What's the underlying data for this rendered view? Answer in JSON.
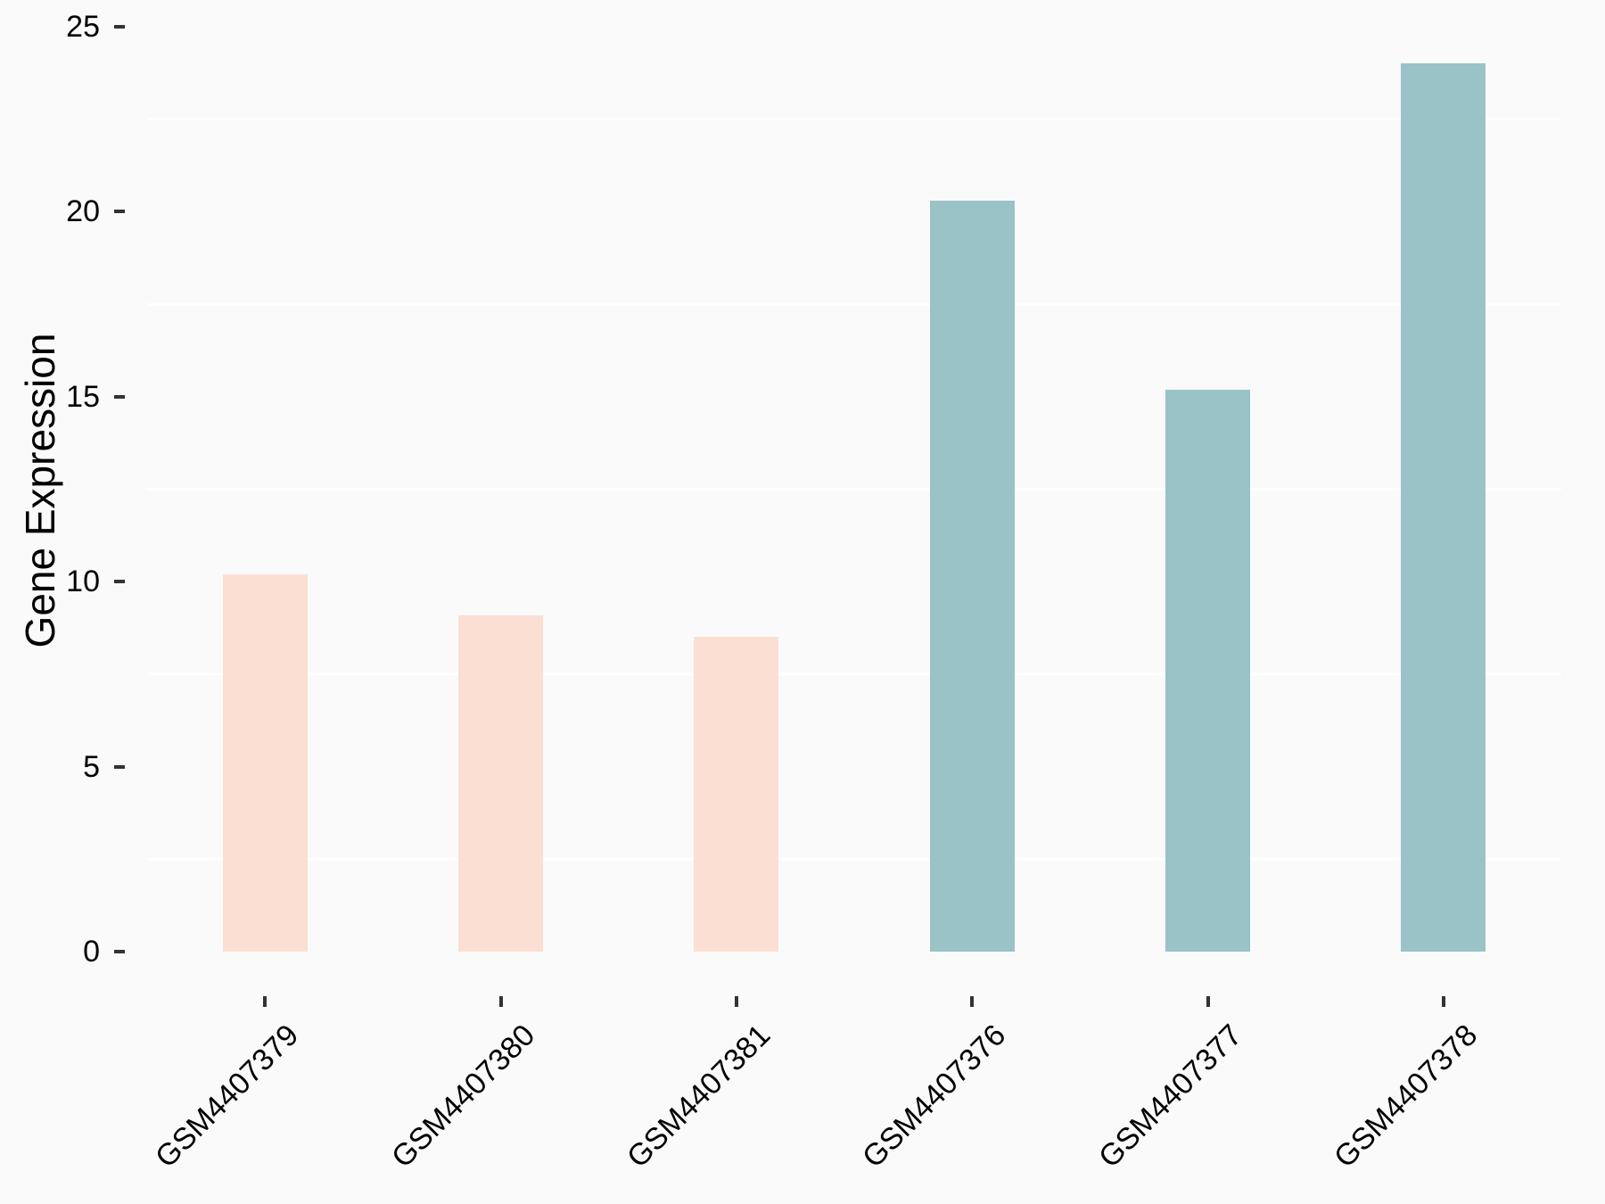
{
  "chart_data": {
    "type": "bar",
    "title": "",
    "xlabel": "",
    "ylabel": "Gene Expression",
    "categories": [
      "GSM4407379",
      "GSM4407380",
      "GSM4407381",
      "GSM4407376",
      "GSM4407377",
      "GSM4407378"
    ],
    "values": [
      10.2,
      9.1,
      8.5,
      20.3,
      15.2,
      24.0
    ],
    "bar_colors": [
      "#fcdfd3",
      "#fcdfd3",
      "#fcdfd3",
      "#99c3c6",
      "#99c3c6",
      "#99c3c6"
    ],
    "ylim": [
      0,
      25
    ],
    "yticks": [
      0,
      5,
      10,
      15,
      20,
      25
    ],
    "ytick_labels": [
      "0",
      "5",
      "10",
      "15",
      "20",
      "25"
    ],
    "minor_gridlines": [
      2.5,
      7.5,
      12.5,
      17.5,
      22.5
    ],
    "x_label_angle_deg": 45,
    "grid": "horizontal minor gridlines only, white",
    "legend_position": "none",
    "colors": {
      "group_pink": "#fcdfd3",
      "group_teal": "#99c3c6",
      "background": "#fafafa",
      "gridline": "#ffffff",
      "tick_mark": "#333333",
      "text": "#000000"
    }
  }
}
